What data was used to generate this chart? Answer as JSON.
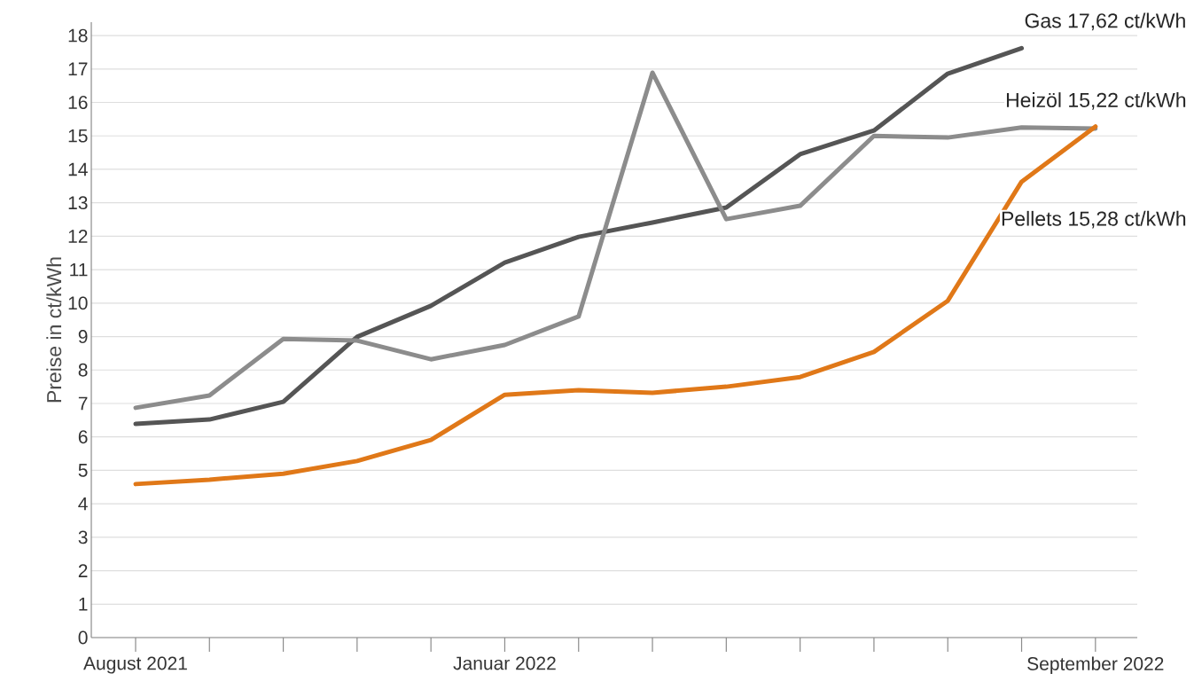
{
  "chart_data": {
    "type": "line",
    "ylabel": "Preise in ct/kWh",
    "x": [
      "2021-08",
      "2021-09",
      "2021-10",
      "2021-11",
      "2021-12",
      "2022-01",
      "2022-02",
      "2022-03",
      "2022-04",
      "2022-05",
      "2022-06",
      "2022-07",
      "2022-08",
      "2022-09"
    ],
    "series": [
      {
        "name": "Gas",
        "color": "#555555",
        "values": [
          6.39,
          6.52,
          7.05,
          8.99,
          9.92,
          11.21,
          11.98,
          12.41,
          12.86,
          14.45,
          15.16,
          16.86,
          17.62,
          null
        ]
      },
      {
        "name": "Heizöl",
        "color": "#8c8c8c",
        "values": [
          6.87,
          7.24,
          8.93,
          8.88,
          8.32,
          8.75,
          9.6,
          16.89,
          12.51,
          12.91,
          15.0,
          14.95,
          15.25,
          15.22
        ]
      },
      {
        "name": "Pellets",
        "color": "#e07818",
        "values": [
          4.59,
          4.72,
          4.9,
          5.28,
          5.91,
          7.26,
          7.4,
          7.32,
          7.5,
          7.79,
          8.54,
          10.07,
          13.63,
          15.28
        ]
      }
    ],
    "annotations": [
      {
        "text": "17,62 ct/kWh",
        "x": "2022-08",
        "y": 17.62
      },
      {
        "text": "15,22 ct/kWh",
        "x": "2022-09",
        "y": 15.22
      },
      "15,28 ct/kWh"
    ],
    "xlim": [
      "2021-07-13",
      "2022-09-18"
    ],
    "xticks": [
      {
        "value": "2021-08",
        "label": "August 2021"
      },
      {
        "value": "2021-09",
        "label": null
      },
      {
        "value": "2021-10",
        "label": null
      },
      {
        "value": "2021-11",
        "label": null
      },
      {
        "value": "2021-12",
        "label": null
      },
      {
        "value": "2022-01",
        "label": "Januar 2022"
      },
      {
        "value": "2022-02",
        "label": null
      },
      {
        "value": "2022-03",
        "label": null
      },
      {
        "value": "2022-04",
        "label": null
      },
      {
        "value": "2022-05",
        "label": null
      },
      {
        "value": "2022-06",
        "label": null
      },
      {
        "value": "2022-07",
        "label": null
      },
      {
        "value": "2022-08",
        "label": null
      },
      {
        "value": "2022-09",
        "label": "September 2022"
      }
    ],
    "ylim": [
      0,
      18.4
    ],
    "yticks": [
      0,
      1,
      2,
      3,
      4,
      5,
      6,
      7,
      8,
      9,
      10,
      11,
      12,
      13,
      14,
      15,
      16,
      17,
      18
    ],
    "grid": "y"
  }
}
